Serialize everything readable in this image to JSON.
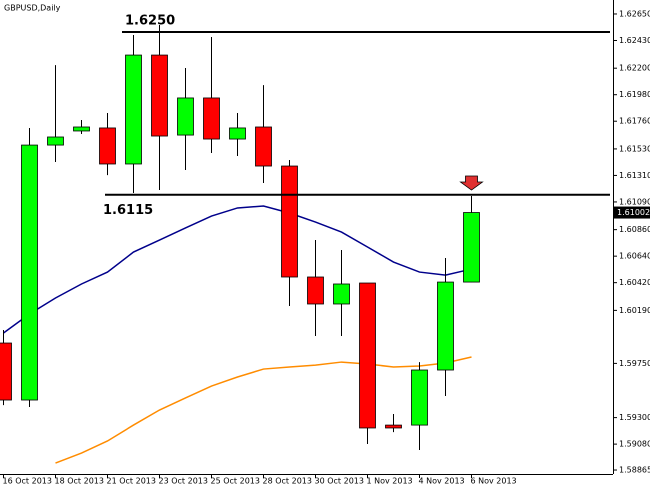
{
  "chart_data": {
    "type": "candlestick",
    "title": "GBPUSD,Daily",
    "categories": [
      "16 Oct 2013",
      null,
      "18 Oct 2013",
      null,
      "21 Oct 2013",
      null,
      "23 Oct 2013",
      null,
      "25 Oct 2013",
      null,
      "28 Oct 2013",
      null,
      "30 Oct 2013",
      null,
      "1 Nov 2013",
      null,
      "4 Nov 2013",
      null,
      "6 Nov 2013"
    ],
    "open": [
      1.59919,
      1.59446,
      1.61562,
      1.61679,
      1.61704,
      1.61405,
      1.62309,
      1.61645,
      1.61953,
      1.61612,
      1.61712,
      1.61388,
      1.60467,
      1.60243,
      1.60417,
      1.59238,
      1.59238,
      1.59695,
      1.60425
    ],
    "high": [
      1.60027,
      1.61704,
      1.62226,
      1.6177,
      1.61828,
      1.62475,
      1.62558,
      1.62202,
      1.62459,
      1.61828,
      1.6206,
      1.61438,
      1.60774,
      1.60691,
      1.60417,
      1.5933,
      1.59761,
      1.60625,
      1.61139
    ],
    "low": [
      1.59404,
      1.59388,
      1.61421,
      1.61654,
      1.61313,
      1.61164,
      1.61189,
      1.61355,
      1.61496,
      1.61471,
      1.61247,
      1.60226,
      1.59977,
      1.59977,
      1.59081,
      1.5918,
      1.59031,
      1.59479,
      1.60425
    ],
    "close": [
      1.59446,
      1.61562,
      1.61629,
      1.61712,
      1.61405,
      1.62309,
      1.61637,
      1.61953,
      1.61612,
      1.61704,
      1.61388,
      1.60467,
      1.60243,
      1.60409,
      1.59214,
      1.59214,
      1.59695,
      1.60425,
      1.61002
    ],
    "up_color": "#00ff00",
    "down_color": "#ff0000",
    "moving_averages": [
      {
        "color": "#00008b",
        "values": [
          1.60002,
          1.6016,
          1.60293,
          1.60409,
          1.60508,
          1.60674,
          1.60774,
          1.60874,
          1.60973,
          1.6104,
          1.61056,
          1.60998,
          1.60923,
          1.6084,
          1.60716,
          1.60591,
          1.60508,
          1.60483,
          1.60533
        ]
      },
      {
        "color": "#ff8c00",
        "values": [
          null,
          null,
          1.58923,
          1.59006,
          1.59106,
          1.59238,
          1.59363,
          1.59463,
          1.59562,
          1.59637,
          1.59703,
          1.5972,
          1.59736,
          1.59761,
          1.59745,
          1.5972,
          1.59728,
          1.59753,
          1.59803
        ]
      }
    ],
    "levels": [
      {
        "value": 1.625,
        "label": "1.6250"
      },
      {
        "value": 1.6115,
        "label": "1.6115"
      }
    ],
    "last_price": {
      "value": 1.61002,
      "label": "1.61002"
    },
    "ylim": [
      1.58832,
      1.62766
    ],
    "yticks": [
      {
        "value": 1.6265,
        "label": "1.62650"
      },
      {
        "value": 1.6243,
        "label": "1.62430"
      },
      {
        "value": 1.622,
        "label": "1.62200"
      },
      {
        "value": 1.6198,
        "label": "1.61980"
      },
      {
        "value": 1.6176,
        "label": "1.61760"
      },
      {
        "value": 1.6153,
        "label": "1.61530"
      },
      {
        "value": 1.6131,
        "label": "1.61310"
      },
      {
        "value": 1.6109,
        "label": "1.61090"
      },
      {
        "value": 1.6086,
        "label": "1.60860"
      },
      {
        "value": 1.6064,
        "label": "1.60640"
      },
      {
        "value": 1.6042,
        "label": "1.60420"
      },
      {
        "value": 1.6019,
        "label": "1.60190"
      },
      {
        "value": 1.5975,
        "label": "1.59750"
      },
      {
        "value": 1.593,
        "label": "1.59300"
      },
      {
        "value": 1.5908,
        "label": "1.59080"
      },
      {
        "value": 1.58865,
        "label": "1.58865"
      }
    ]
  }
}
